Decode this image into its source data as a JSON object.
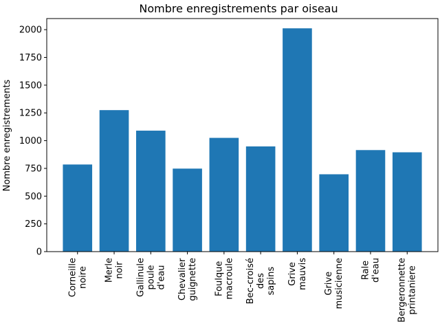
{
  "chart_data": {
    "type": "bar",
    "title": "Nombre enregistrements par oiseau",
    "xlabel": "",
    "ylabel": "Nombre enregistrements",
    "ylim": [
      0,
      2100
    ],
    "yticks": [
      0,
      250,
      500,
      750,
      1000,
      1250,
      1500,
      1750,
      2000
    ],
    "ytick_labels": [
      "0",
      "250",
      "500",
      "750",
      "1000",
      "1250",
      "1500",
      "1750",
      "2000"
    ],
    "categories": [
      "Corneille noire",
      "Merle noir",
      "Gallinule poule d'eau",
      "Chevalier guignette",
      "Foulque macroule",
      "Bec-croisé des sapins",
      "Grive mauvis",
      "Grive musicienne",
      "Rale d'eau",
      "Bergeronnette printaniere"
    ],
    "category_lines": [
      [
        "Corneille",
        "noire"
      ],
      [
        "Merle",
        "noir"
      ],
      [
        "Gallinule",
        "poule",
        "d'eau"
      ],
      [
        "Chevalier",
        "guignette"
      ],
      [
        "Foulque",
        "macroule"
      ],
      [
        "Bec-croisé",
        "des",
        "sapins"
      ],
      [
        "Grive",
        "mauvis"
      ],
      [
        "Grive",
        "musicienne"
      ],
      [
        "Rale",
        "d'eau"
      ],
      [
        "Bergeronnette",
        "printaniere"
      ]
    ],
    "values": [
      785,
      1275,
      1090,
      748,
      1025,
      948,
      2012,
      697,
      915,
      895
    ],
    "bar_color": "#1f77b4",
    "grid": false,
    "legend": "none"
  }
}
